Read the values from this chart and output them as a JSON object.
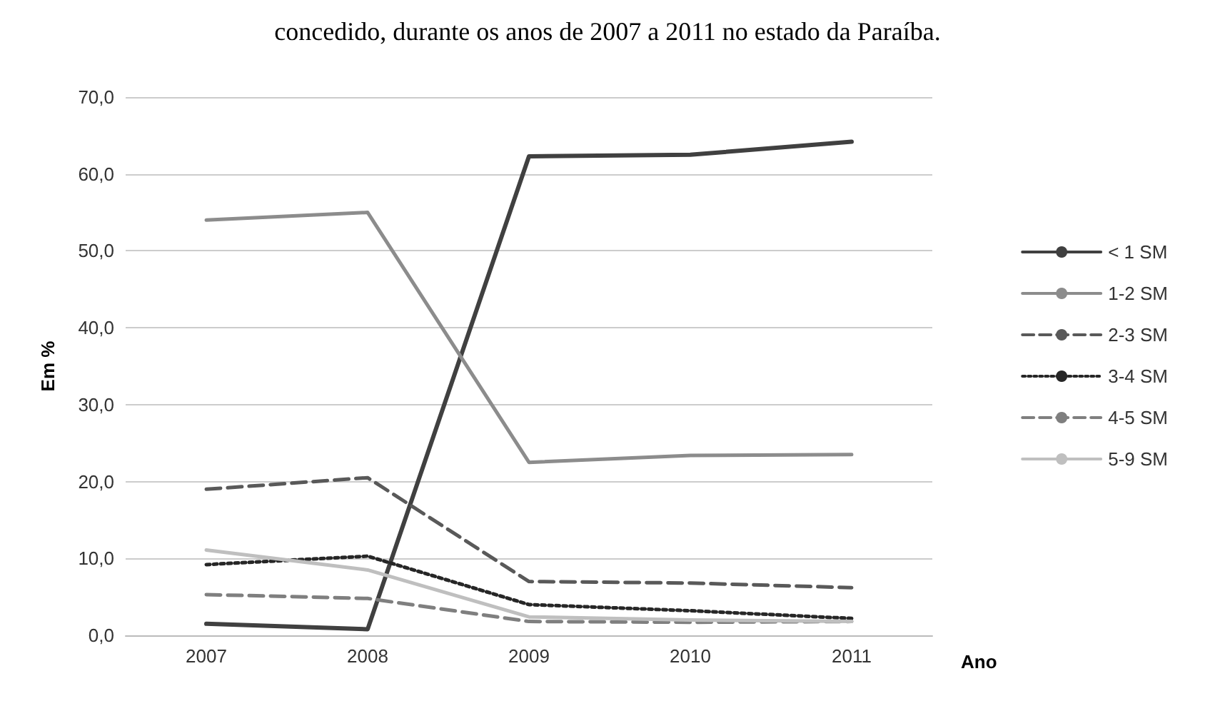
{
  "chart_data": {
    "type": "line",
    "title": "concedido, durante os anos de 2007 a 2011 no estado da Paraíba.",
    "xlabel": "Ano",
    "ylabel": "Em %",
    "categories": [
      "2007",
      "2008",
      "2009",
      "2010",
      "2011"
    ],
    "series": [
      {
        "name": "< 1 SM",
        "color": "#404040",
        "line_style": "solid",
        "values": [
          1.5,
          0.8,
          62.3,
          62.5,
          64.2
        ]
      },
      {
        "name": "1-2 SM",
        "color": "#8c8c8c",
        "line_style": "solid",
        "values": [
          54.0,
          55.0,
          22.5,
          23.4,
          23.5
        ]
      },
      {
        "name": "2-3 SM",
        "color": "#595959",
        "line_style": "dashed",
        "values": [
          19.0,
          20.5,
          7.0,
          6.8,
          6.2
        ]
      },
      {
        "name": "3-4 SM",
        "color": "#262626",
        "line_style": "dotted",
        "values": [
          9.2,
          10.3,
          4.0,
          3.2,
          2.2
        ]
      },
      {
        "name": "4-5 SM",
        "color": "#7f7f7f",
        "line_style": "dashed",
        "values": [
          5.3,
          4.8,
          1.8,
          1.7,
          1.8
        ]
      },
      {
        "name": "5-9 SM",
        "color": "#bfbfbf",
        "line_style": "solid",
        "values": [
          11.1,
          8.5,
          2.4,
          2.0,
          1.8
        ]
      }
    ],
    "ylim": [
      0,
      70
    ],
    "yticks": [
      {
        "value": 0,
        "label": "0,0"
      },
      {
        "value": 10,
        "label": "10,0"
      },
      {
        "value": 20,
        "label": "20,0"
      },
      {
        "value": 30,
        "label": "30,0"
      },
      {
        "value": 40,
        "label": "40,0"
      },
      {
        "value": 50,
        "label": "50,0"
      },
      {
        "value": 60,
        "label": "60,0"
      },
      {
        "value": 70,
        "label": "70,0"
      }
    ],
    "grid": "y",
    "legend": "right",
    "marker": "none"
  }
}
